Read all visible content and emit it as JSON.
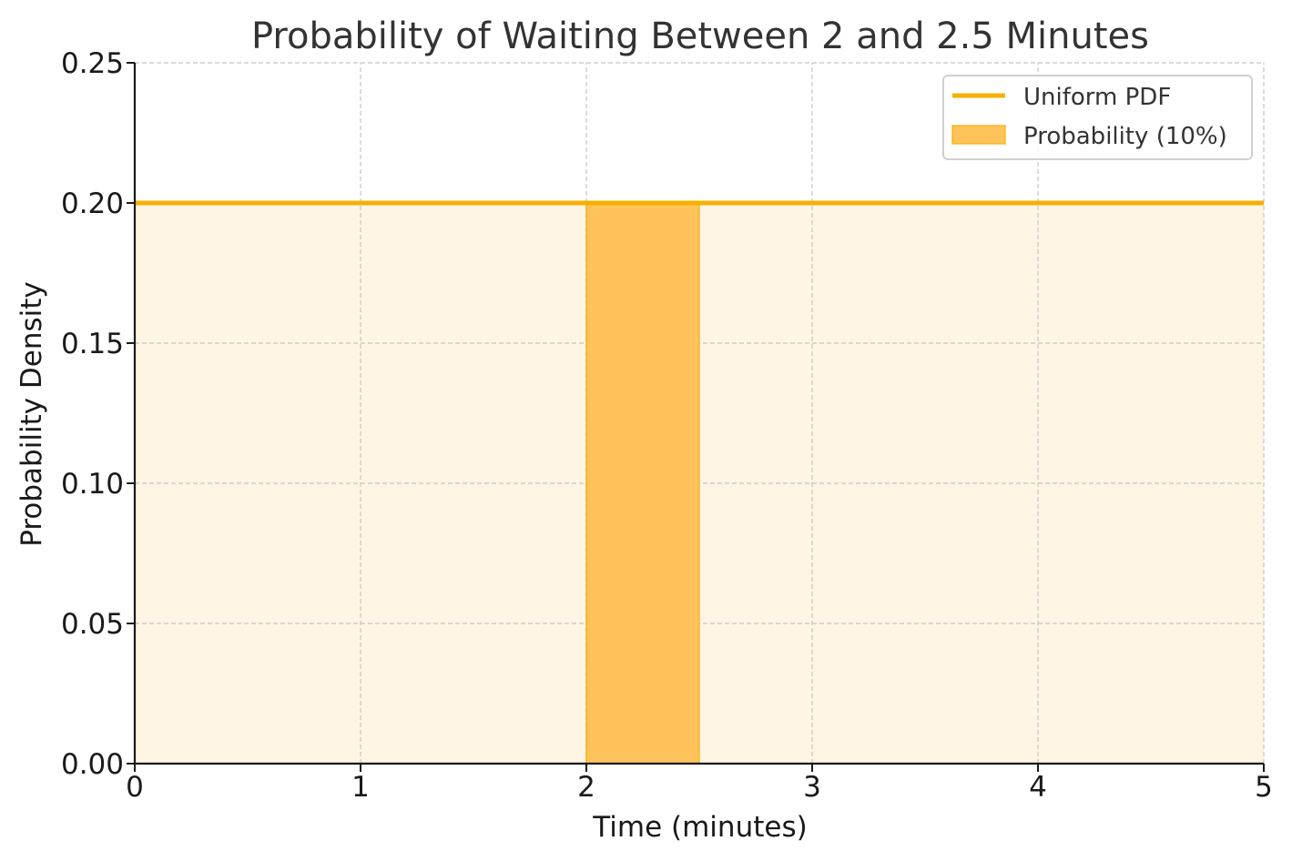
{
  "chart_data": {
    "type": "area",
    "title": "Probability of Waiting Between 2 and 2.5 Minutes",
    "xlabel": "Time (minutes)",
    "ylabel": "Probability Density",
    "xlim": [
      0,
      5
    ],
    "ylim": [
      0,
      0.25
    ],
    "x_ticks": [
      0,
      1,
      2,
      3,
      4,
      5
    ],
    "x_tick_labels": [
      "0",
      "1",
      "2",
      "3",
      "4",
      "5"
    ],
    "y_ticks": [
      0,
      0.05,
      0.1,
      0.15,
      0.2,
      0.25
    ],
    "y_tick_labels": [
      "0.00",
      "0.05",
      "0.10",
      "0.15",
      "0.20",
      "0.25"
    ],
    "grid": true,
    "legend_position": "top-right",
    "series": [
      {
        "name": "Uniform PDF",
        "kind": "line",
        "x": [
          0,
          5
        ],
        "y": [
          0.2,
          0.2
        ],
        "color": "#F5B000",
        "background_fill_color": "#FEF5E4"
      },
      {
        "name": "Probability (10%)",
        "kind": "filled-area",
        "x": [
          2,
          2.5
        ],
        "y": [
          0.2,
          0.2
        ],
        "color": "#FEC35A",
        "edge_color": "#F5B000"
      }
    ]
  }
}
